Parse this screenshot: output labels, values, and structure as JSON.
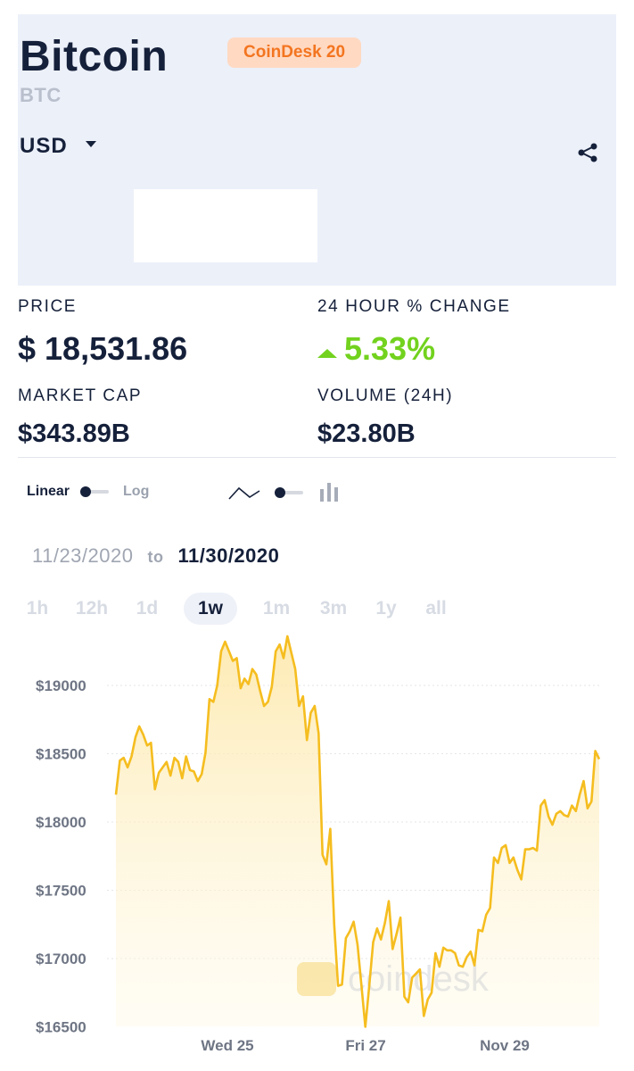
{
  "header": {
    "title": "Bitcoin",
    "badge": "CoinDesk 20",
    "symbol": "BTC",
    "currency": "USD",
    "share_icon": "share-icon",
    "caret_icon": "caret-down-icon"
  },
  "stats": {
    "price_label": "PRICE",
    "price_value": "$ 18,531.86",
    "change_label": "24 HOUR % CHANGE",
    "change_value": "5.33%",
    "market_cap_label": "MARKET CAP",
    "market_cap_value": "$343.89B",
    "volume_label": "VOLUME (24H)",
    "volume_value": "$23.80B"
  },
  "controls": {
    "linear_label": "Linear",
    "log_label": "Log",
    "line_icon": "line-chart-icon",
    "candle_icon": "candlestick-chart-icon"
  },
  "date_range": {
    "from": "11/23/2020",
    "to_word": "to",
    "to": "11/30/2020"
  },
  "ranges": [
    "1h",
    "12h",
    "1d",
    "1w",
    "1m",
    "3m",
    "1y",
    "all"
  ],
  "active_range": "1w",
  "colors": {
    "line": "#f5bd1f",
    "positive": "#72d21e",
    "badge_text": "#f37520",
    "badge_bg": "#ffd9c2",
    "header_bg": "#ecf0f9"
  },
  "watermark": "coindesk",
  "chart_data": {
    "type": "area",
    "y_tick_labels": [
      "$19000",
      "$18500",
      "$18000",
      "$17500",
      "$17000",
      "$16500"
    ],
    "x_tick_labels": [
      "Wed 25",
      "Fri 27",
      "Nov 29"
    ],
    "ylim": [
      16500,
      19400
    ],
    "grid": true,
    "series": [
      {
        "values": [
          18200,
          18450,
          18470,
          18400,
          18480,
          18620,
          18700,
          18640,
          18560,
          18580,
          18240,
          18360,
          18400,
          18440,
          18340,
          18470,
          18440,
          18320,
          18480,
          18380,
          18370,
          18300,
          18350,
          18510,
          18900,
          18880,
          19000,
          19250,
          19320,
          19250,
          19180,
          19200,
          18980,
          19050,
          19010,
          19120,
          19080,
          18960,
          18850,
          18880,
          18990,
          19250,
          19300,
          19200,
          19360,
          19240,
          19120,
          18850,
          18920,
          18600,
          18800,
          18850,
          18650,
          17760,
          17690,
          17950,
          17250,
          16800,
          16810,
          17150,
          17200,
          17270,
          17100,
          16800,
          16500,
          16800,
          17120,
          17220,
          17140,
          17260,
          17420,
          17070,
          17180,
          17300,
          16720,
          16680,
          16860,
          16890,
          16920,
          16580,
          16700,
          16750,
          17040,
          16940,
          17080,
          17060,
          17060,
          17040,
          16950,
          16940,
          17010,
          17050,
          16950,
          17210,
          17200,
          17320,
          17370,
          17740,
          17700,
          17810,
          17830,
          17700,
          17740,
          17650,
          17580,
          17800,
          17800,
          17810,
          17790,
          18120,
          18160,
          18040,
          17980,
          18060,
          18080,
          18050,
          18040,
          18120,
          18080,
          18200,
          18300,
          18100,
          18150,
          18520,
          18460
        ]
      }
    ]
  }
}
